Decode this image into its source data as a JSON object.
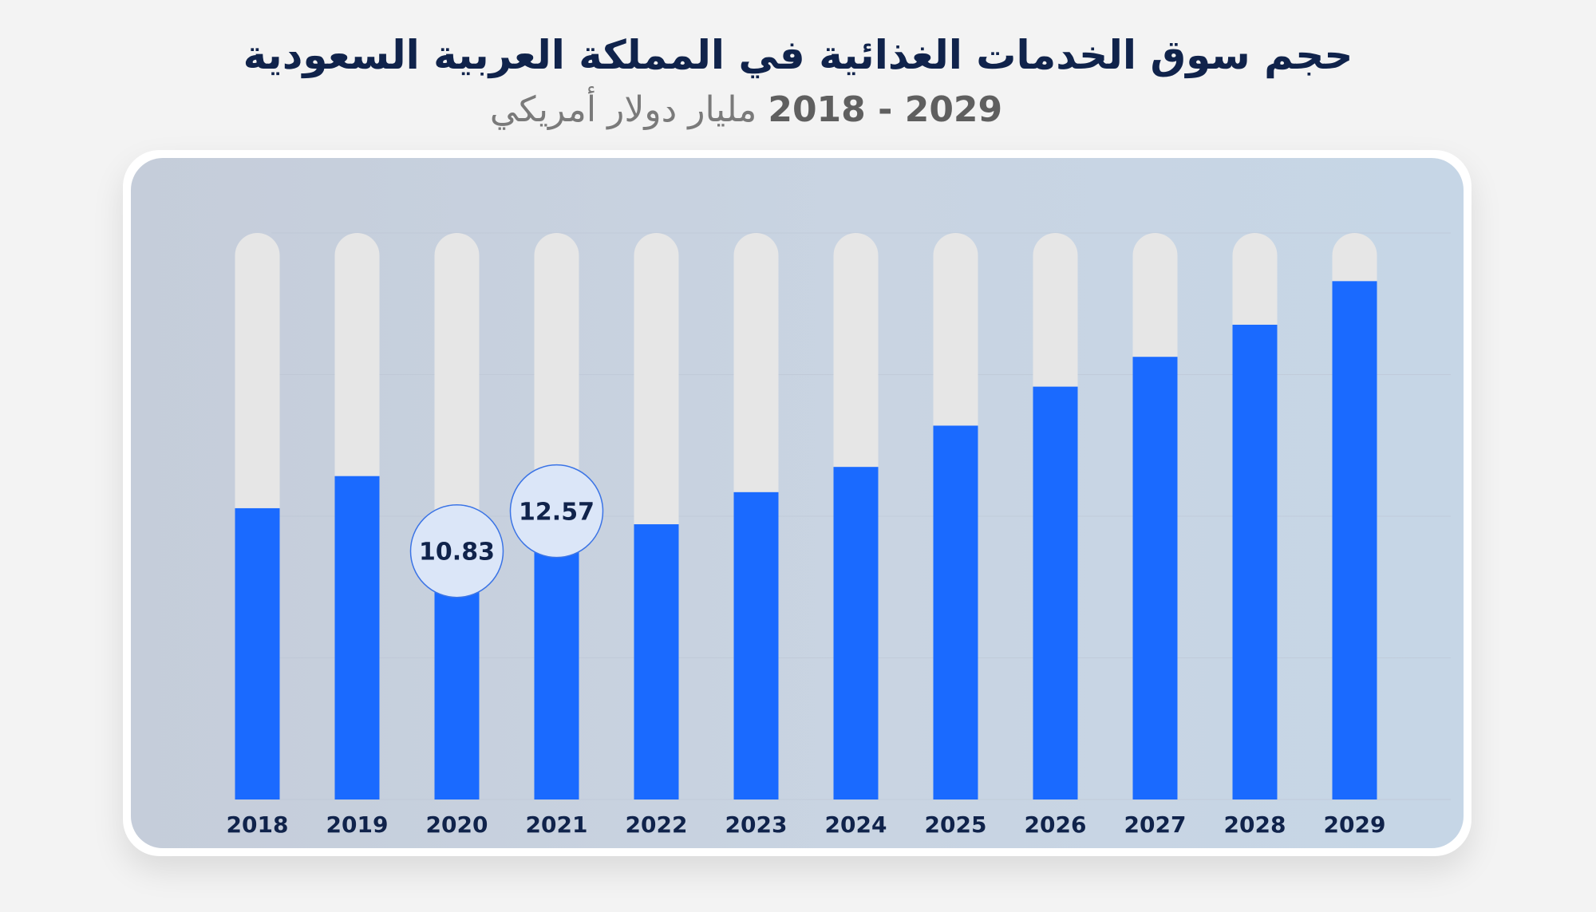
{
  "header": {
    "title": "حجم سوق الخدمات الغذائية في المملكة العربية السعودية",
    "subtitle_years": "2029 - 2018",
    "subtitle_unit": "مليار دولار أمريكي"
  },
  "colors": {
    "bar": "#1a6aff",
    "track": "#e6e6e6",
    "label": "#10234b",
    "bubble_fill": "#dbe6f8",
    "bubble_stroke": "#3b74e6"
  },
  "chart_data": {
    "type": "bar",
    "title": "حجم سوق الخدمات الغذائية في المملكة العربية السعودية",
    "subtitle": "2029 - 2018 مليار دولار أمريكي",
    "xlabel": "",
    "ylabel": "",
    "categories": [
      "2018",
      "2019",
      "2020",
      "2021",
      "2022",
      "2023",
      "2024",
      "2025",
      "2026",
      "2027",
      "2028",
      "2029"
    ],
    "values": [
      12.7,
      14.1,
      10.83,
      12.57,
      12.0,
      13.4,
      14.5,
      16.3,
      18.0,
      19.3,
      20.7,
      22.6
    ],
    "data_labels": [
      {
        "category": "2020",
        "text": "10.83"
      },
      {
        "category": "2021",
        "text": "12.57"
      }
    ],
    "ylim": [
      0,
      24.7
    ],
    "grid": true
  }
}
